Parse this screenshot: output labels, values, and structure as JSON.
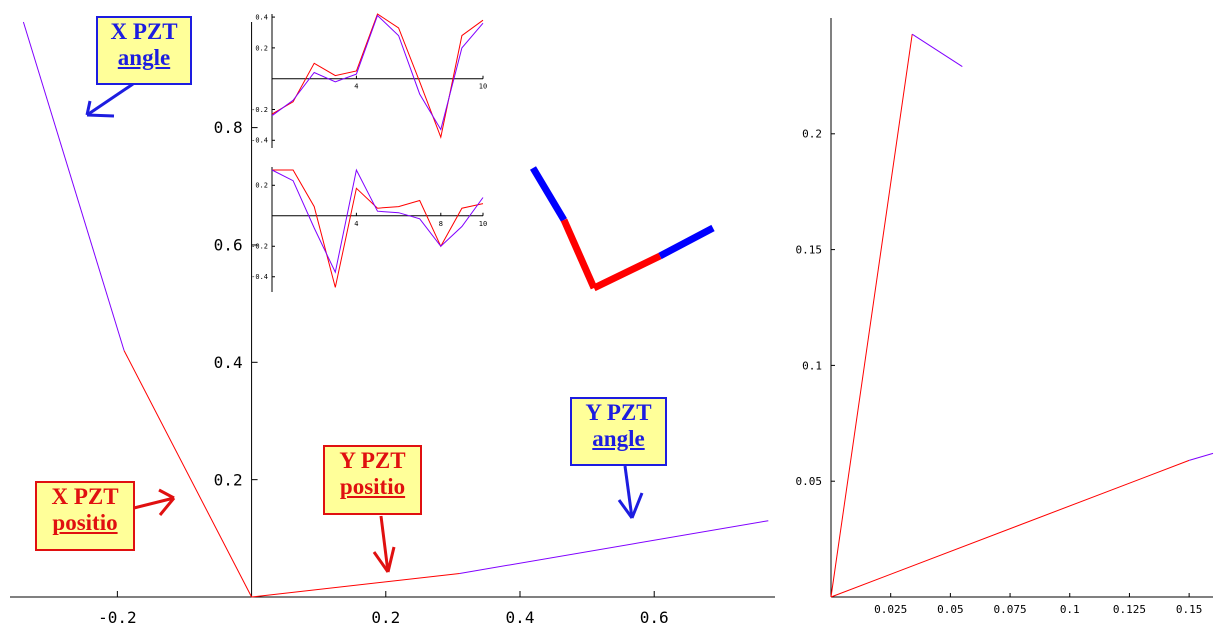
{
  "colors": {
    "blue": "#0000ff",
    "red": "#ff0000",
    "purple": "#8000ff",
    "label_bg": "#ffff99"
  },
  "chart_data": [
    {
      "id": "main",
      "type": "line",
      "xlim": [
        -0.36,
        0.78
      ],
      "ylim": [
        0,
        0.98
      ],
      "xticks": [
        -0.2,
        0.2,
        0.4,
        0.6
      ],
      "yticks": [
        0.2,
        0.4,
        0.6,
        0.8
      ],
      "xtick_labels": [
        "-0.2",
        "0.2",
        "0.4",
        "0.6"
      ],
      "ytick_labels": [
        "0.2",
        "0.4",
        "0.6",
        "0.8"
      ],
      "series": [
        {
          "color": "purple",
          "x": [
            -0.34,
            -0.19
          ],
          "y": [
            0.98,
            0.42
          ]
        },
        {
          "color": "red",
          "x": [
            -0.19,
            0
          ],
          "y": [
            0.42,
            0
          ]
        },
        {
          "color": "red",
          "x": [
            0,
            0.31
          ],
          "y": [
            0,
            0.04
          ]
        },
        {
          "color": "purple",
          "x": [
            0.31,
            0.77
          ],
          "y": [
            0.04,
            0.13
          ]
        }
      ]
    },
    {
      "id": "inset_top",
      "type": "line",
      "xlim": [
        0,
        10
      ],
      "ylim": [
        -0.45,
        0.42
      ],
      "xticks": [
        4,
        10
      ],
      "yticks": [
        -0.4,
        -0.2,
        0.2,
        0.4
      ],
      "xtick_labels": [
        "4",
        "10"
      ],
      "ytick_labels": [
        "-0.4",
        "-0.2",
        "0.2",
        "0.4"
      ],
      "series": [
        {
          "color": "red",
          "x": [
            0,
            1,
            2,
            3,
            4,
            5,
            6,
            7,
            8,
            9,
            10
          ],
          "y": [
            -0.23,
            -0.15,
            0.1,
            0.02,
            0.05,
            0.42,
            0.33,
            -0.02,
            -0.38,
            0.28,
            0.38
          ]
        },
        {
          "color": "purple",
          "x": [
            0,
            1,
            2,
            3,
            4,
            5,
            6,
            7,
            8,
            9,
            10
          ],
          "y": [
            -0.24,
            -0.14,
            0.04,
            -0.02,
            0.03,
            0.41,
            0.28,
            -0.1,
            -0.33,
            0.2,
            0.36
          ]
        }
      ]
    },
    {
      "id": "inset_bottom",
      "type": "line",
      "xlim": [
        0,
        10
      ],
      "ylim": [
        -0.5,
        0.32
      ],
      "xticks": [
        4,
        8,
        10
      ],
      "yticks": [
        -0.4,
        -0.2,
        0.2
      ],
      "xtick_labels": [
        "4",
        "8",
        "10"
      ],
      "ytick_labels": [
        "-0.4",
        "-0.2",
        "0.2"
      ],
      "series": [
        {
          "color": "red",
          "x": [
            0,
            1,
            2,
            3,
            4,
            5,
            6,
            7,
            8,
            9,
            10
          ],
          "y": [
            0.3,
            0.3,
            0.06,
            -0.47,
            0.18,
            0.05,
            0.06,
            0.1,
            -0.2,
            0.05,
            0.08
          ]
        },
        {
          "color": "purple",
          "x": [
            0,
            1,
            2,
            3,
            4,
            5,
            6,
            7,
            8,
            9,
            10
          ],
          "y": [
            0.3,
            0.23,
            -0.08,
            -0.37,
            0.3,
            0.03,
            0.02,
            -0.02,
            -0.2,
            -0.07,
            0.12
          ]
        }
      ]
    },
    {
      "id": "right",
      "type": "line",
      "xlim": [
        0,
        0.16
      ],
      "ylim": [
        0,
        0.25
      ],
      "xticks": [
        0.025,
        0.05,
        0.075,
        0.1,
        0.125,
        0.15
      ],
      "yticks": [
        0.05,
        0.1,
        0.15,
        0.2
      ],
      "xtick_labels": [
        "0.025",
        "0.05",
        "0.075",
        "0.1",
        "0.125",
        "0.15"
      ],
      "ytick_labels": [
        "0.05",
        "0.1",
        "0.15",
        "0.2"
      ],
      "series": [
        {
          "color": "red",
          "x": [
            0,
            0.034
          ],
          "y": [
            0,
            0.243
          ]
        },
        {
          "color": "purple",
          "x": [
            0.034,
            0.055
          ],
          "y": [
            0.243,
            0.229
          ]
        },
        {
          "color": "red",
          "x": [
            0,
            0.15
          ],
          "y": [
            0,
            0.059
          ]
        },
        {
          "color": "purple",
          "x": [
            0.15,
            0.16
          ],
          "y": [
            0.059,
            0.062
          ]
        }
      ]
    }
  ],
  "labels": {
    "x_pzt_angle": {
      "line1": "X PZT",
      "line2": "angle"
    },
    "x_pzt_position": {
      "line1": "X PZT",
      "line2": "positio"
    },
    "y_pzt_position": {
      "line1": "Y PZT",
      "line2": "positio"
    },
    "y_pzt_angle": {
      "line1": "Y PZT",
      "line2": "angle"
    }
  }
}
